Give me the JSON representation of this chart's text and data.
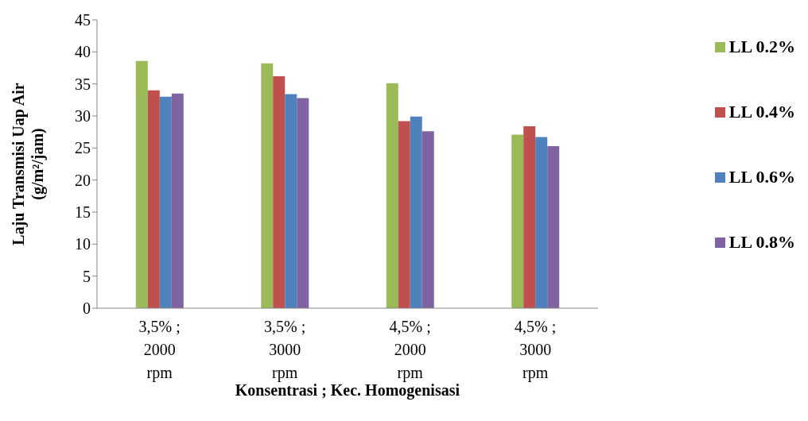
{
  "chart_data": {
    "type": "bar",
    "xlabel": "Konsentrasi ; Kec. Homogenisasi",
    "ylabel": "Laju Transmisi Uap Air\n(g/m²/jam)",
    "categories": [
      "3,5% ;\n2000\nrpm",
      "3,5% ;\n3000\nrpm",
      "4,5% ;\n2000\nrpm",
      "4,5% ;\n3000\nrpm"
    ],
    "series": [
      {
        "name": "LL 0.2%",
        "color": "#9bbb59",
        "values": [
          38.6,
          38.2,
          35.1,
          27.1
        ]
      },
      {
        "name": "LL 0.4%",
        "color": "#c0504d",
        "values": [
          34.0,
          36.2,
          29.2,
          28.4
        ]
      },
      {
        "name": "LL 0.6%",
        "color": "#4f81bd",
        "values": [
          33.0,
          33.4,
          29.9,
          26.7
        ]
      },
      {
        "name": "LL 0.8%",
        "color": "#8064a2",
        "values": [
          33.5,
          32.8,
          27.6,
          25.3
        ]
      }
    ],
    "ylim": [
      0,
      45
    ],
    "yticks": [
      0,
      5,
      10,
      15,
      20,
      25,
      30,
      35,
      40,
      45
    ],
    "grid": false,
    "legend": "right"
  }
}
